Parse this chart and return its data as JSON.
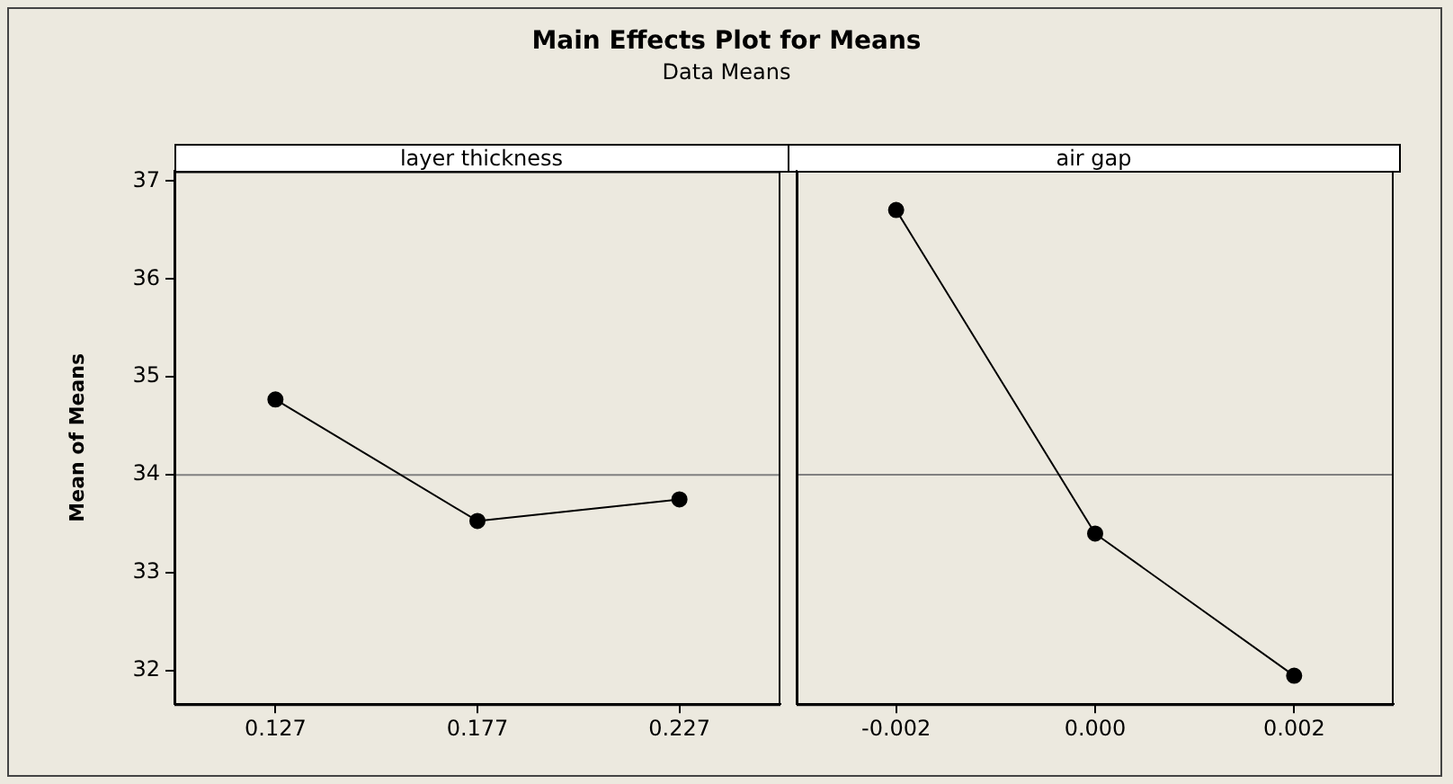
{
  "chart_data": [
    {
      "type": "line",
      "title": "Main Effects Plot for Means",
      "subtitle": "Data Means",
      "ylabel": "Mean of Means",
      "xlabel": "layer thickness",
      "categories": [
        "0.127",
        "0.177",
        "0.227"
      ],
      "series": [
        {
          "color": "#000000",
          "values": [
            34.77,
            33.53,
            33.75
          ]
        }
      ],
      "ylim": [
        31.66,
        37.1
      ],
      "yticks": [
        32,
        33,
        34,
        35,
        36,
        37
      ],
      "ref_lines": [
        {
          "axis": "y",
          "value": 34.0,
          "color": "#808080"
        }
      ],
      "grid": false,
      "legend": false,
      "marker": "circle",
      "line_style": "solid"
    },
    {
      "type": "line",
      "xlabel": "air gap",
      "categories": [
        "-0.002",
        "0.000",
        "0.002"
      ],
      "series": [
        {
          "color": "#000000",
          "values": [
            36.7,
            33.4,
            31.95
          ]
        }
      ],
      "ylim": [
        31.66,
        37.1
      ],
      "yticks": [
        32,
        33,
        34,
        35,
        36,
        37
      ],
      "ref_lines": [
        {
          "axis": "y",
          "value": 34.0,
          "color": "#808080"
        }
      ],
      "grid": false,
      "legend": false,
      "marker": "circle",
      "line_style": "solid",
      "tick_labels": "x"
    }
  ]
}
